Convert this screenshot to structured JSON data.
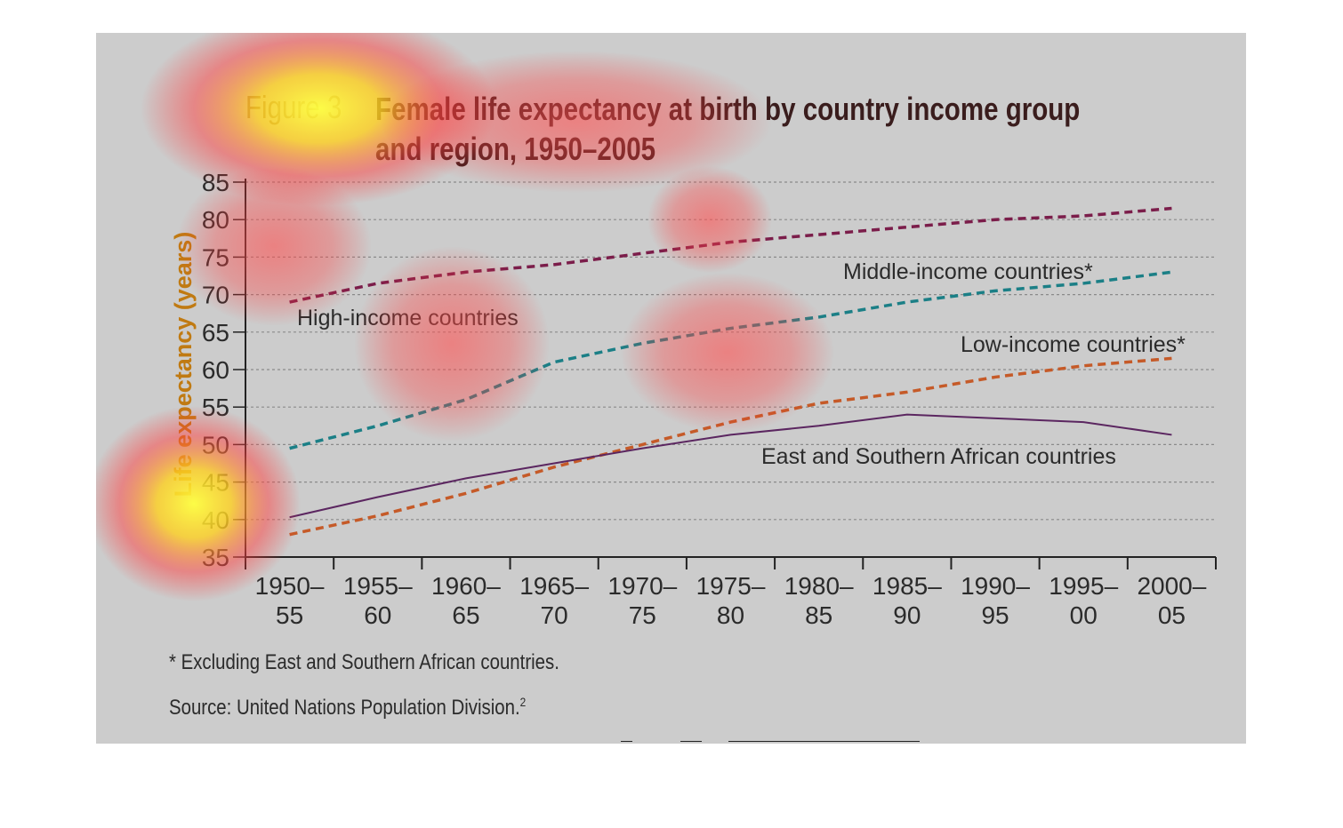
{
  "figure_number": "Figure 3",
  "title_line1": "Female life expectancy at birth by country income group",
  "title_line2": "and region, 1950–2005",
  "footnote": "* Excluding East and Southern African countries.",
  "source": "Source: United Nations Population Division.",
  "source_superscript": "2",
  "colors": {
    "high_income": "#7b1d4a",
    "middle_income": "#1b7f86",
    "low_income": "#c55a28",
    "east_southern_africa": "#5b2660",
    "panel": "#cccccc"
  },
  "chart_data": {
    "type": "line",
    "title": "Female life expectancy at birth by country income group and region, 1950–2005",
    "ylabel": "Life expectancy (years)",
    "xlabel": "",
    "ylim": [
      35,
      85
    ],
    "yticks": [
      35,
      40,
      45,
      50,
      55,
      60,
      65,
      70,
      75,
      80,
      85
    ],
    "grid": true,
    "categories": [
      [
        "1950–",
        "55"
      ],
      [
        "1955–",
        "60"
      ],
      [
        "1960–",
        "65"
      ],
      [
        "1965–",
        "70"
      ],
      [
        "1970–",
        "75"
      ],
      [
        "1975–",
        "80"
      ],
      [
        "1980–",
        "85"
      ],
      [
        "1985–",
        "90"
      ],
      [
        "1990–",
        "95"
      ],
      [
        "1995–",
        "00"
      ],
      [
        "2000–",
        "05"
      ]
    ],
    "series": [
      {
        "name": "High-income countries",
        "style": "dashed",
        "color": "#7b1d4a",
        "values": [
          69,
          71.5,
          73,
          74,
          75.5,
          77,
          78,
          79,
          80,
          80.5,
          81.5
        ]
      },
      {
        "name": "Middle-income countries*",
        "style": "dashed",
        "color": "#1b7f86",
        "values": [
          49.5,
          52.5,
          56,
          61,
          63.5,
          65.5,
          67,
          69,
          70.5,
          71.5,
          73
        ]
      },
      {
        "name": "Low-income countries*",
        "style": "dashed",
        "color": "#c55a28",
        "values": [
          38,
          40.5,
          43.5,
          47,
          50,
          53,
          55.5,
          57,
          59,
          60.5,
          61.5
        ]
      },
      {
        "name": "East and Southern African countries",
        "style": "solid",
        "color": "#5b2660",
        "values": [
          40.3,
          43,
          45.5,
          47.5,
          49.5,
          51.3,
          52.5,
          54,
          53.5,
          53,
          51.3
        ]
      }
    ]
  }
}
